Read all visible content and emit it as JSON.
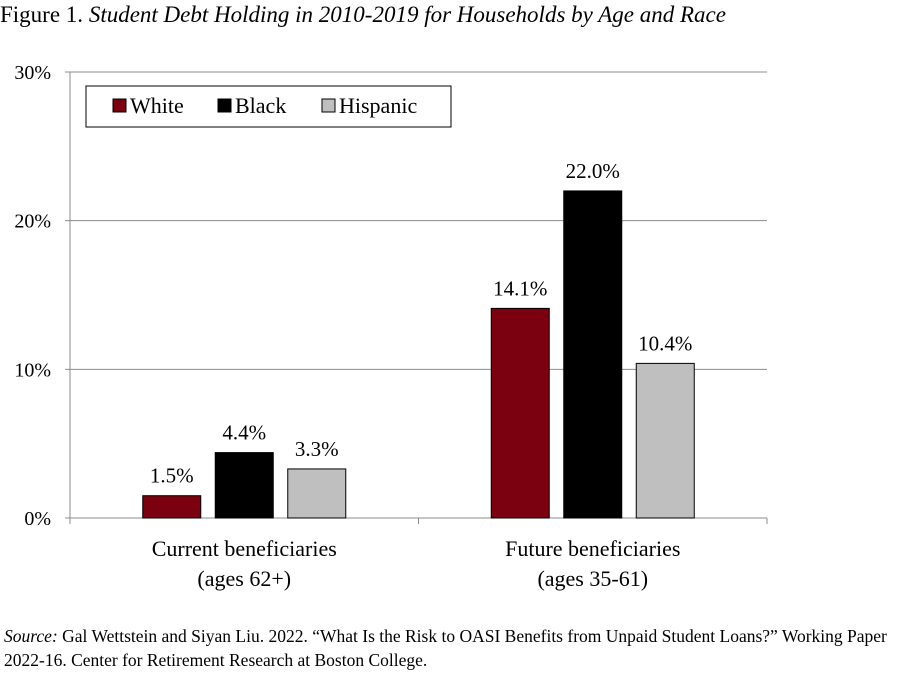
{
  "figure": {
    "label": "Figure 1.",
    "title": "Student Debt Holding in 2010-2019 for Households by Age and Race"
  },
  "source": {
    "label": "Source:",
    "text": "Gal Wettstein and Siyan Liu. 2022. “What Is the Risk to OASI Benefits from Unpaid Student Loans?” Working Paper 2022-16. Center for Retirement Research at Boston College."
  },
  "chart_data": {
    "type": "bar",
    "title": "Student Debt Holding in 2010-2019 for Households by Age and Race",
    "categories": [
      [
        "Current beneficiaries",
        "(ages 62+)"
      ],
      [
        "Future beneficiaries",
        "(ages 35-61)"
      ]
    ],
    "series": [
      {
        "name": "White",
        "values": [
          1.5,
          14.1
        ],
        "labels": [
          "1.5%",
          "14.1%"
        ],
        "color": "#7b0010"
      },
      {
        "name": "Black",
        "values": [
          4.4,
          22.0
        ],
        "labels": [
          "4.4%",
          "22.0%"
        ],
        "color": "#000000"
      },
      {
        "name": "Hispanic",
        "values": [
          3.3,
          10.4
        ],
        "labels": [
          "3.3%",
          "10.4%"
        ],
        "color": "#bfbfbf"
      }
    ],
    "ylim": [
      0,
      30
    ],
    "yticks": [
      0,
      10,
      20,
      30
    ],
    "ytick_labels": [
      "0%",
      "10%",
      "20%",
      "30%"
    ],
    "grid": true,
    "legend_position": "top-left"
  }
}
